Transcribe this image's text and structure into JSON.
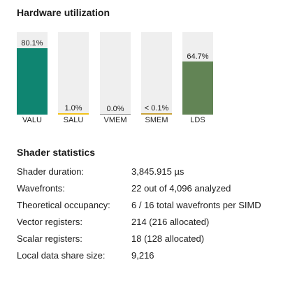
{
  "hardware_title": "Hardware utilization",
  "bars": [
    {
      "label": "VALU",
      "value_text": "80.1%",
      "percent": 80.1,
      "color": "#0f8571"
    },
    {
      "label": "SALU",
      "value_text": "1.0%",
      "percent": 1.0,
      "color": "#f2c21a"
    },
    {
      "label": "VMEM",
      "value_text": "0.0%",
      "percent": 0.0,
      "color": "#8a8a8a"
    },
    {
      "label": "SMEM",
      "value_text": "< 0.1%",
      "percent": 0.05,
      "color": "#c8a33a"
    },
    {
      "label": "LDS",
      "value_text": "64.7%",
      "percent": 64.7,
      "color": "#628455"
    }
  ],
  "shader_title": "Shader statistics",
  "stats": [
    {
      "label": "Shader duration:",
      "value": "3,845.915 µs"
    },
    {
      "label": "Wavefronts:",
      "value": "22 out of 4,096 analyzed"
    },
    {
      "label": "Theoretical occupancy:",
      "value": "6 / 16 total wavefronts per SIMD"
    },
    {
      "label": "Vector registers:",
      "value": "214 (216 allocated)"
    },
    {
      "label": "Scalar registers:",
      "value": "18 (128 allocated)"
    },
    {
      "label": "Local data share size:",
      "value": "9,216"
    }
  ]
}
